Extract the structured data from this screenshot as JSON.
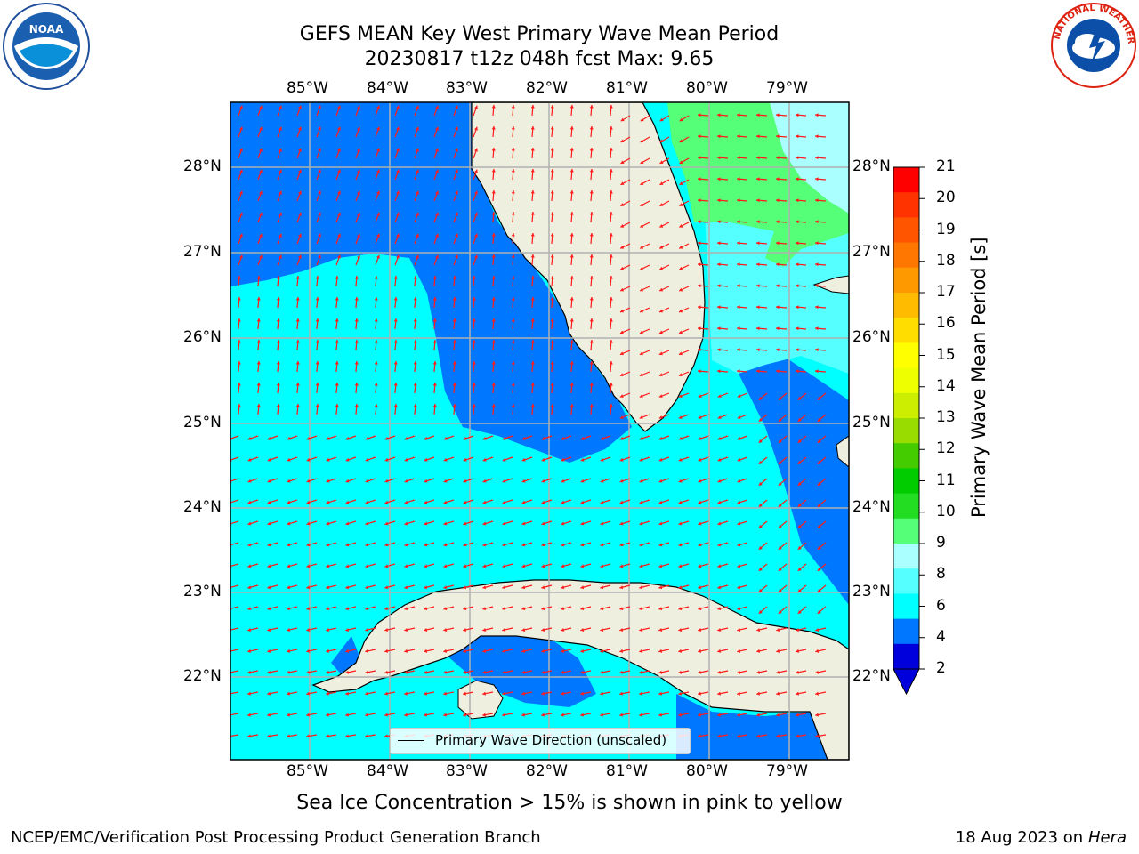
{
  "title_line1": "GEFS MEAN Key West Primary Wave Mean Period",
  "title_line2": "20230817 t12z 048h fcst   Max: 9.65",
  "lon_ticks": [
    "85°W",
    "84°W",
    "83°W",
    "82°W",
    "81°W",
    "80°W",
    "79°W"
  ],
  "lat_ticks": [
    "28°N",
    "27°N",
    "26°N",
    "25°N",
    "24°N",
    "23°N",
    "22°N"
  ],
  "colorbar": {
    "label": "Primary Wave Mean Period [s]",
    "ticks": [
      "21",
      "20",
      "19",
      "18",
      "17",
      "16",
      "15",
      "14",
      "13",
      "12",
      "11",
      "10",
      "9",
      "8",
      "6",
      "4",
      "2"
    ],
    "colors": [
      "#ff0000",
      "#ff3300",
      "#ff5500",
      "#ff7700",
      "#ff9900",
      "#ffbb00",
      "#ffdd00",
      "#ffff00",
      "#eeff00",
      "#ccee00",
      "#99dd00",
      "#44cc00",
      "#00cc00",
      "#22dd22",
      "#55ff77",
      "#aaffff",
      "#55ffff",
      "#00ffff",
      "#0077ff",
      "#0000dd"
    ],
    "underflow_color": "#0000dd"
  },
  "legend_label": "Primary Wave Direction (unscaled)",
  "sea_ice_note": "Sea Ice Concentration > 15% is shown in pink to yellow",
  "footer_left": "NCEP/EMC/Verification Post Processing Product Generation Branch",
  "footer_right_date": "18 Aug 2023 on",
  "footer_right_machine": "Hera",
  "logos": {
    "left": "noaa-logo",
    "right": "nws-logo"
  }
}
